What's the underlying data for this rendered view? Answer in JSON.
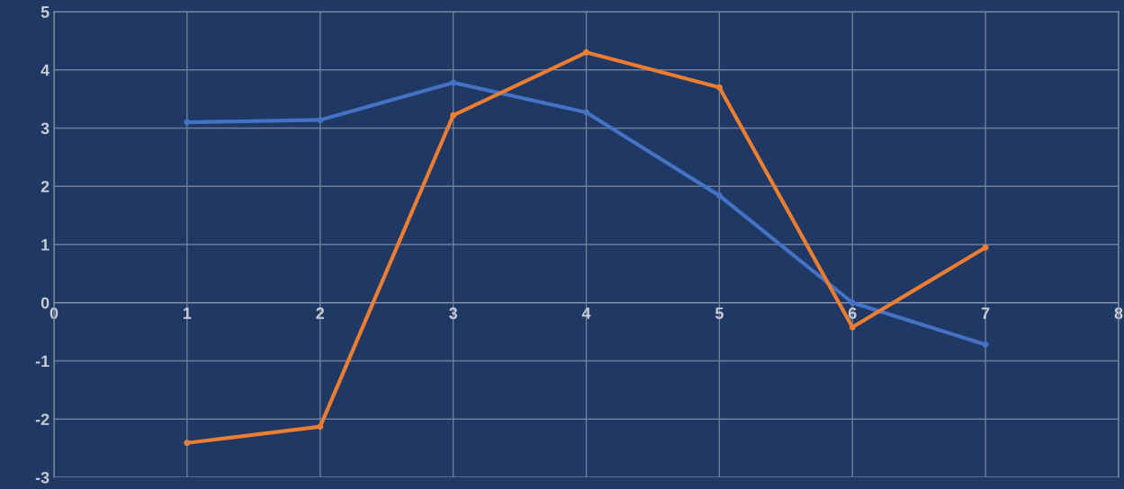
{
  "chart_data": {
    "type": "line",
    "x": [
      1,
      2,
      3,
      4,
      5,
      6,
      7
    ],
    "series": [
      {
        "color": "#4472c4",
        "values": [
          3.1,
          3.14,
          3.78,
          3.27,
          1.84,
          0,
          -0.72
        ]
      },
      {
        "color": "#ed7d31",
        "values": [
          -2.41,
          -2.13,
          3.22,
          4.3,
          3.7,
          -0.42,
          0.95
        ]
      }
    ],
    "xlim": [
      0,
      8
    ],
    "xticks": [
      0,
      1,
      2,
      3,
      4,
      5,
      6,
      7,
      8
    ],
    "ylim": [
      -3,
      5
    ],
    "yticks": [
      -3,
      -2,
      -1,
      0,
      1,
      2,
      3,
      4,
      5
    ],
    "grid": true,
    "marker": "circle",
    "line_style": "solid",
    "legend": false
  }
}
